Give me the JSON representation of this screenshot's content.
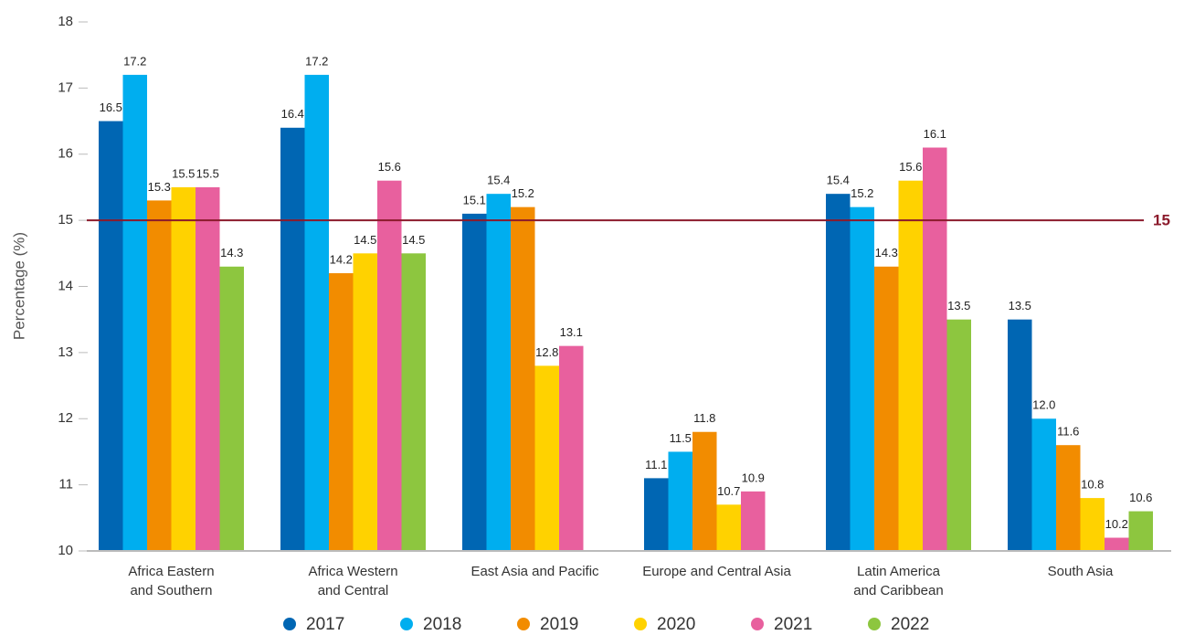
{
  "chart_data": {
    "type": "bar",
    "y_label": "Percentage (%)",
    "categories": [
      "Africa Eastern\nand Southern",
      "Africa Western\nand Central",
      "East Asia and Pacific",
      "Europe and Central Asia",
      "Latin America\nand Caribbean",
      "South Asia"
    ],
    "series": [
      {
        "name": "2017",
        "color": "#0066b3",
        "values": [
          16.5,
          16.4,
          15.1,
          11.1,
          15.4,
          13.5
        ],
        "value_labels": [
          "16.5",
          "16.4",
          "15.1",
          "11.1",
          "15.4",
          "13.5"
        ]
      },
      {
        "name": "2018",
        "color": "#00aeef",
        "values": [
          17.2,
          17.2,
          15.4,
          11.5,
          15.2,
          12
        ],
        "value_labels": [
          "17.2",
          "17.2",
          "15.4",
          "11.5",
          "15.2",
          "12.0"
        ]
      },
      {
        "name": "2019",
        "color": "#f28c00",
        "values": [
          15.3,
          14.2,
          15.2,
          11.8,
          14.3,
          11.6
        ],
        "value_labels": [
          "15.3",
          "14.2",
          "15.2",
          "11.8",
          "14.3",
          "11.6"
        ]
      },
      {
        "name": "2020",
        "color": "#ffd200",
        "values": [
          15.5,
          14.5,
          12.8,
          10.7,
          15.6,
          10.8
        ],
        "value_labels": [
          "15.5",
          "14.5",
          "12.8",
          "10.7",
          "15.6",
          "10.8"
        ]
      },
      {
        "name": "2021",
        "color": "#e8609e",
        "values": [
          15.5,
          15.6,
          13.1,
          10.9,
          16.1,
          10.2
        ],
        "value_labels": [
          "15.5",
          "15.6",
          "13.1",
          "10.9",
          "16.1",
          "10.2"
        ]
      },
      {
        "name": "2022",
        "color": "#8dc63f",
        "values": [
          14.3,
          14.5,
          null,
          null,
          13.5,
          10.6
        ],
        "value_labels": [
          "14.3",
          "14.5",
          null,
          null,
          "13.5",
          "10.6"
        ]
      }
    ],
    "ylim": [
      10,
      18
    ],
    "yticks": [
      10,
      11,
      12,
      13,
      14,
      15,
      16,
      17,
      18
    ],
    "grid": false,
    "reference_line": 15,
    "reference_color": "#8b1a2b",
    "legend": "bottom"
  }
}
